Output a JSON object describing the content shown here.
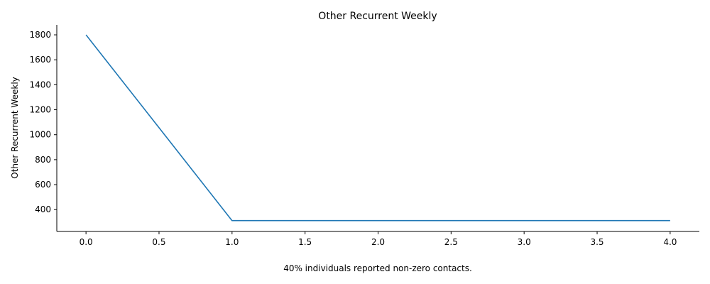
{
  "chart_data": {
    "type": "line",
    "title": "Other Recurrent Weekly",
    "xlabel": "",
    "ylabel": "Other Recurrent Weekly",
    "caption": "40% individuals reported non-zero contacts.",
    "xlim": [
      -0.2,
      4.2
    ],
    "ylim": [
      225,
      1880
    ],
    "x_ticks": [
      0.0,
      0.5,
      1.0,
      1.5,
      2.0,
      2.5,
      3.0,
      3.5,
      4.0
    ],
    "x_tick_labels": [
      "0.0",
      "0.5",
      "1.0",
      "1.5",
      "2.0",
      "2.5",
      "3.0",
      "3.5",
      "4.0"
    ],
    "y_ticks": [
      400,
      600,
      800,
      1000,
      1200,
      1400,
      1600,
      1800
    ],
    "y_tick_labels": [
      "400",
      "600",
      "800",
      "1000",
      "1200",
      "1400",
      "1600",
      "1800"
    ],
    "grid": false,
    "series": [
      {
        "color": "#1f77b4",
        "x": [
          0,
          1,
          2,
          3,
          4
        ],
        "y": [
          1800,
          312,
          312,
          312,
          312
        ]
      }
    ]
  }
}
